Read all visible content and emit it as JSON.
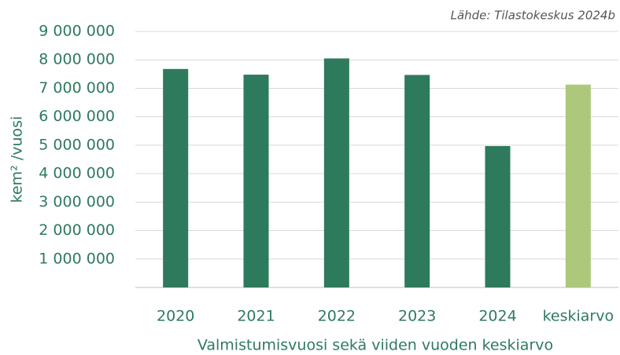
{
  "chart_data": {
    "type": "bar",
    "source": "Lähde: Tilastokeskus 2024b",
    "y_label": "kem² /vuosi",
    "x_label": "Valmistumisvuosi sekä viiden vuoden keskiarvo",
    "categories": [
      "2020",
      "2021",
      "2022",
      "2023",
      "2024",
      "keskiarvo"
    ],
    "values": [
      7680000,
      7480000,
      8050000,
      7470000,
      4970000,
      7130000
    ],
    "colors": [
      "#2e7a5c",
      "#2e7a5c",
      "#2e7a5c",
      "#2e7a5c",
      "#2e7a5c",
      "#adc87a"
    ],
    "ylim": [
      0,
      9000000
    ],
    "yticks": [
      {
        "value": 1000000,
        "label": "1 000 000"
      },
      {
        "value": 2000000,
        "label": "2 000 000"
      },
      {
        "value": 3000000,
        "label": "3 000 000"
      },
      {
        "value": 4000000,
        "label": "4 000 000"
      },
      {
        "value": 5000000,
        "label": "5 000 000"
      },
      {
        "value": 6000000,
        "label": "6 000 000"
      },
      {
        "value": 7000000,
        "label": "7 000 000"
      },
      {
        "value": 8000000,
        "label": "8 000 000"
      },
      {
        "value": 9000000,
        "label": "9 000 000"
      }
    ],
    "grid": true
  }
}
